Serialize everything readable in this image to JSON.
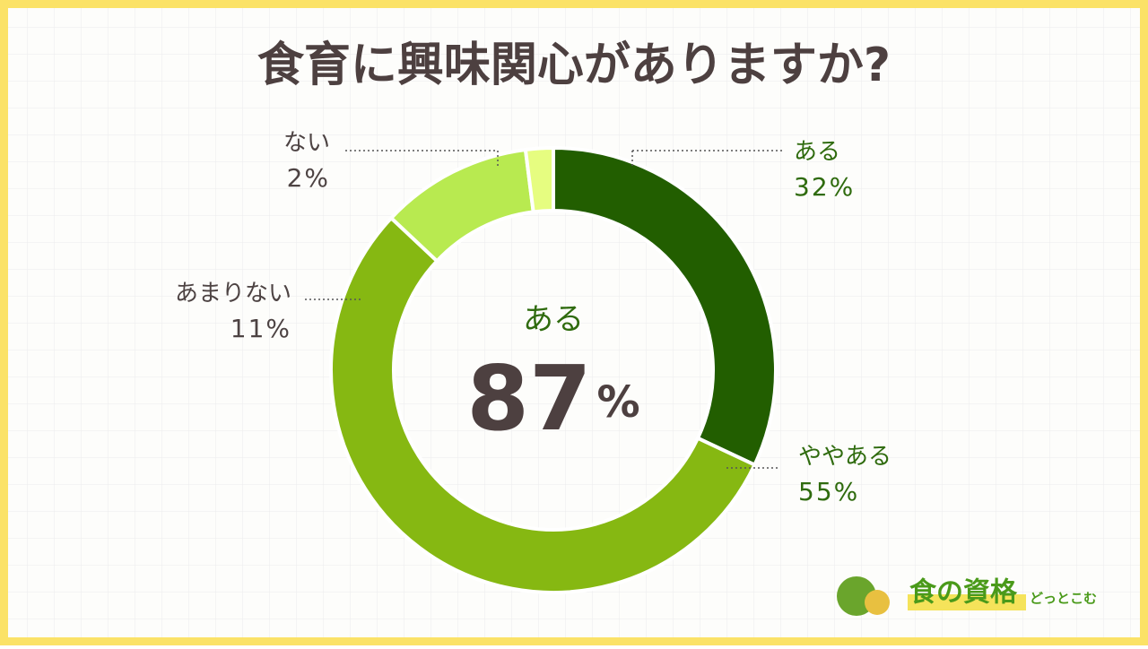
{
  "chart_data": {
    "type": "donut",
    "title": "食育に興味関心がありますか?",
    "categories": [
      "ある",
      "ややある",
      "あまりない",
      "ない"
    ],
    "values": [
      32,
      55,
      11,
      2
    ],
    "value_labels": [
      "32%",
      "55%",
      "11%",
      "2%"
    ],
    "colors": [
      "#225e00",
      "#86b812",
      "#b8ea50",
      "#e6fd80"
    ],
    "label_colors": [
      "#2f6b0e",
      "#2f6b0e",
      "#4d4343",
      "#4d4343"
    ],
    "center": {
      "label": "ある",
      "value": 87,
      "value_label": "87%"
    }
  },
  "logo": {
    "main": "食の資格",
    "sub": "どっとこむ"
  }
}
